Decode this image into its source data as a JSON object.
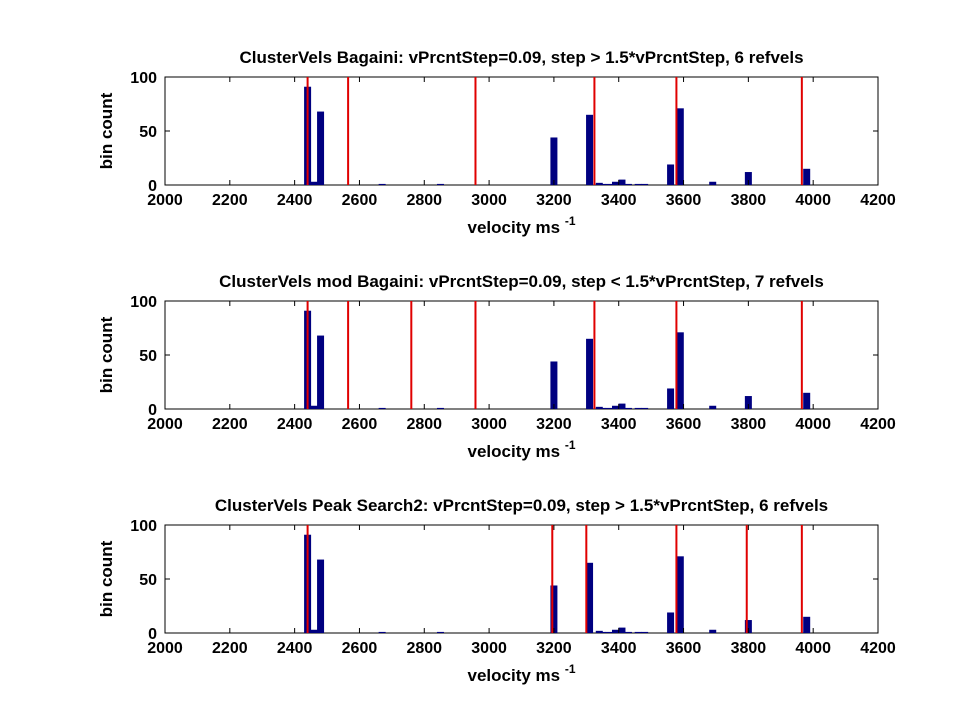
{
  "chart_data": [
    {
      "type": "bar",
      "title": "ClusterVels Bagaini: vPrcntStep=0.09, step > 1.5*vPrcntStep, 6 refvels",
      "xlabel": "velocity ms",
      "xlabel_sup": "-1",
      "ylabel": "bin count",
      "xlim": [
        2000,
        4200
      ],
      "ylim": [
        0,
        100
      ],
      "xticks": [
        2000,
        2200,
        2400,
        2600,
        2800,
        3000,
        3200,
        3400,
        3600,
        3800,
        4000,
        4200
      ],
      "yticks": [
        0,
        50,
        100
      ],
      "bars": {
        "x": [
          2440,
          2460,
          2480,
          2670,
          2850,
          3200,
          3310,
          3340,
          3350,
          3370,
          3390,
          3410,
          3430,
          3460,
          3480,
          3560,
          3590,
          3690,
          3800,
          3980
        ],
        "y": [
          91,
          3,
          68,
          1,
          1,
          44,
          65,
          2,
          1,
          1,
          3,
          5,
          1,
          1,
          1,
          19,
          71,
          3,
          12,
          15
        ]
      },
      "refvels": [
        2440,
        2565,
        2958,
        3325,
        3578,
        3965
      ],
      "bar_color": "#000080",
      "line_color": "#e00000"
    },
    {
      "type": "bar",
      "title": "ClusterVels mod Bagaini: vPrcntStep=0.09, step < 1.5*vPrcntStep, 7 refvels",
      "xlabel": "velocity ms",
      "xlabel_sup": "-1",
      "ylabel": "bin count",
      "xlim": [
        2000,
        4200
      ],
      "ylim": [
        0,
        100
      ],
      "xticks": [
        2000,
        2200,
        2400,
        2600,
        2800,
        3000,
        3200,
        3400,
        3600,
        3800,
        4000,
        4200
      ],
      "yticks": [
        0,
        50,
        100
      ],
      "bars": {
        "x": [
          2440,
          2460,
          2480,
          2670,
          2850,
          3200,
          3310,
          3340,
          3350,
          3370,
          3390,
          3410,
          3430,
          3460,
          3480,
          3560,
          3590,
          3690,
          3800,
          3980
        ],
        "y": [
          91,
          3,
          68,
          1,
          1,
          44,
          65,
          2,
          1,
          1,
          3,
          5,
          1,
          1,
          1,
          19,
          71,
          3,
          12,
          15
        ]
      },
      "refvels": [
        2440,
        2565,
        2760,
        2958,
        3325,
        3578,
        3965
      ],
      "bar_color": "#000080",
      "line_color": "#e00000"
    },
    {
      "type": "bar",
      "title": "ClusterVels Peak Search2: vPrcntStep=0.09, step > 1.5*vPrcntStep, 6 refvels",
      "xlabel": "velocity ms",
      "xlabel_sup": "-1",
      "ylabel": "bin count",
      "xlim": [
        2000,
        4200
      ],
      "ylim": [
        0,
        100
      ],
      "xticks": [
        2000,
        2200,
        2400,
        2600,
        2800,
        3000,
        3200,
        3400,
        3600,
        3800,
        4000,
        4200
      ],
      "yticks": [
        0,
        50,
        100
      ],
      "bars": {
        "x": [
          2440,
          2460,
          2480,
          2670,
          2850,
          3200,
          3310,
          3340,
          3350,
          3370,
          3390,
          3410,
          3430,
          3460,
          3480,
          3560,
          3590,
          3690,
          3800,
          3980
        ],
        "y": [
          91,
          3,
          68,
          1,
          1,
          44,
          65,
          2,
          1,
          1,
          3,
          5,
          1,
          1,
          1,
          19,
          71,
          3,
          12,
          15
        ]
      },
      "refvels": [
        2440,
        3195,
        3300,
        3578,
        3795,
        3965
      ],
      "bar_color": "#000080",
      "line_color": "#e00000"
    }
  ]
}
